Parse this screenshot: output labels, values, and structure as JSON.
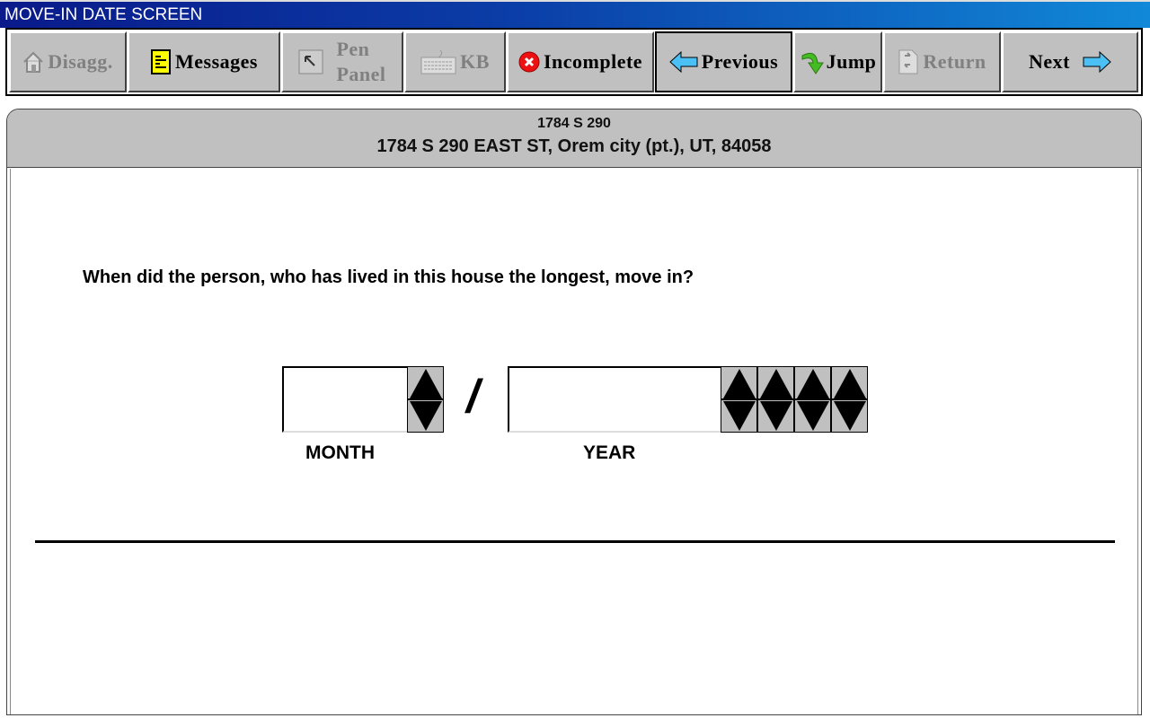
{
  "window": {
    "title": "MOVE-IN DATE SCREEN"
  },
  "toolbar": {
    "disagg": "Disagg.",
    "messages": "Messages",
    "pen_panel_1": "Pen",
    "pen_panel_2": "Panel",
    "kb": "KB",
    "incomplete": "Incomplete",
    "previous": "Previous",
    "jump": "Jump",
    "return": "Return",
    "next": "Next"
  },
  "header": {
    "short_address": "1784 S 290",
    "full_address": "1784 S 290 EAST ST, Orem city (pt.), UT, 84058"
  },
  "question": "When did the person, who has lived in this house the longest, move in?",
  "date": {
    "month_value": "",
    "year_value": "",
    "separator": "/",
    "month_label": "MONTH",
    "year_label": "YEAR"
  },
  "colors": {
    "titlebar_start": "#0a1a8a",
    "titlebar_end": "#1189d8",
    "button_face": "#c0c0c0"
  }
}
